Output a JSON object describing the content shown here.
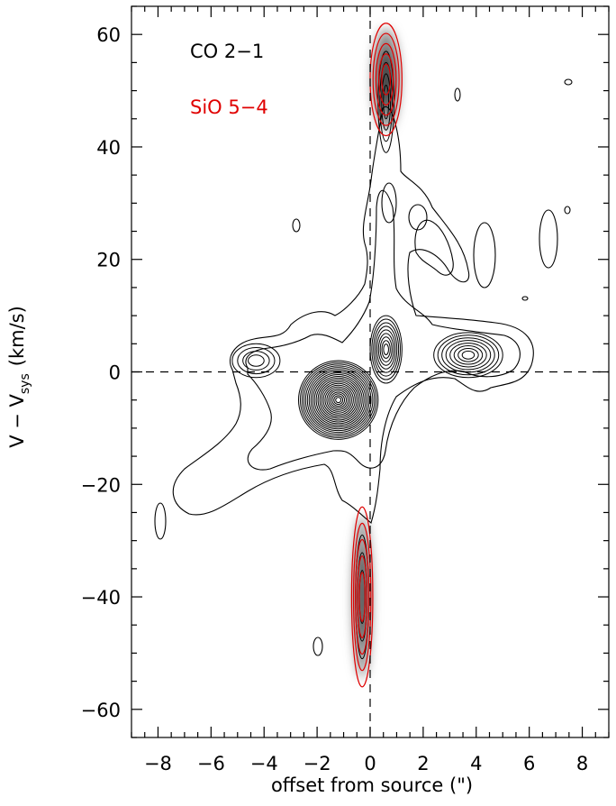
{
  "chart_data": {
    "type": "contour",
    "xlabel": "offset from source (\")",
    "ylabel_main": "V − V",
    "ylabel_sub": "sys",
    "ylabel_unit": "(km/s)",
    "xlim": [
      -9,
      9
    ],
    "ylim": [
      -65,
      65
    ],
    "x_ticks": [
      -8,
      -6,
      -4,
      -2,
      0,
      2,
      4,
      6,
      8
    ],
    "x_tick_labels": [
      "−8",
      "−6",
      "−4",
      "−2",
      "0",
      "2",
      "4",
      "6",
      "8"
    ],
    "y_ticks": [
      -60,
      -40,
      -20,
      0,
      20,
      40,
      60
    ],
    "y_tick_labels": [
      "−60",
      "−40",
      "−20",
      "0",
      "20",
      "40",
      "60"
    ],
    "legend": [
      {
        "label": "CO 2−1",
        "color": "#000000"
      },
      {
        "label": "SiO 5−4",
        "color": "#e00000"
      }
    ],
    "reference_lines": {
      "x": 0,
      "y": 0,
      "style": "dashed"
    },
    "colors": {
      "co": "#000000",
      "sio": "#e00000",
      "greyscale": "#555555"
    },
    "sio_features": [
      {
        "name": "red lobe",
        "x": 0.6,
        "y": 52,
        "half_x": 0.6,
        "half_y": 10
      },
      {
        "name": "blue lobe",
        "x": -0.3,
        "y": -40,
        "half_x": 0.4,
        "half_y": 16
      }
    ],
    "co_features": [
      {
        "name": "core",
        "x": -1.2,
        "y": -5,
        "half_x": 1.5,
        "half_y": 7
      },
      {
        "name": "red knot",
        "x": 0.6,
        "y": 4,
        "half_x": 0.6,
        "half_y": 6
      },
      {
        "name": "east clump",
        "x": 3.7,
        "y": 3,
        "half_x": 1.3,
        "half_y": 4
      },
      {
        "name": "west clump",
        "x": -4.3,
        "y": 2,
        "half_x": 0.9,
        "half_y": 3
      }
    ]
  }
}
